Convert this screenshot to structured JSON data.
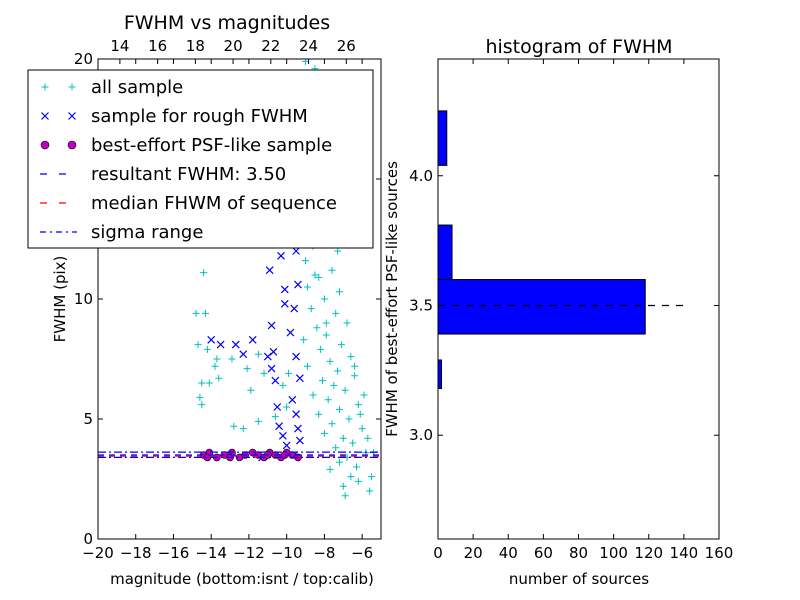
{
  "chart_data": [
    {
      "type": "scatter",
      "title": "FWHM vs magnitudes",
      "xlabel": "magnitude (bottom:isnt / top:calib)",
      "ylabel": "FWHM (pix)",
      "xlim": [
        -20,
        -5
      ],
      "ylim": [
        0,
        20
      ],
      "x_ticks": [
        -20,
        -18,
        -16,
        -14,
        -12,
        -10,
        -8,
        -6
      ],
      "x_tick_labels": [
        "−20",
        "−18",
        "−16",
        "−14",
        "−12",
        "−10",
        "−8",
        "−6"
      ],
      "y_ticks": [
        0,
        5,
        10,
        15,
        20
      ],
      "y_tick_labels": [
        "0",
        "5",
        "10",
        "15",
        "20"
      ],
      "top_axis": {
        "ticks_at_bottom_mag": [
          -18.84,
          -16.84,
          -14.84,
          -12.84,
          -10.84,
          -8.84,
          -6.84,
          -4.84
        ],
        "tick_labels": [
          "14",
          "16",
          "18",
          "20",
          "22",
          "24",
          "26"
        ]
      },
      "grid": false,
      "legend_placement": "upper-left",
      "legend": [
        {
          "label": "all sample",
          "marker": "+",
          "color": "#00bfbf"
        },
        {
          "label": "sample for rough FWHM",
          "marker": "x",
          "color": "#0000ff"
        },
        {
          "label": "best-effort PSF-like sample",
          "marker": "o",
          "color": "#bf00bf"
        },
        {
          "label": "resultant FWHM: 3.50",
          "marker": "--",
          "color": "#0000ff"
        },
        {
          "label": "median FHWM of sequence",
          "marker": "--",
          "color": "#ff0000"
        },
        {
          "label": "sigma range",
          "marker": "-.",
          "color": "#0000ff"
        }
      ],
      "hlines": [
        {
          "y": 3.5,
          "style": "dashed",
          "color": "#0000ff"
        },
        {
          "y": 3.45,
          "style": "dashed",
          "color": "#ff0000"
        },
        {
          "y": 3.62,
          "style": "dashdot",
          "color": "#0000ff"
        },
        {
          "y": 3.4,
          "style": "dashdot",
          "color": "#0000ff"
        }
      ],
      "series": [
        {
          "name": "all sample",
          "marker": "+",
          "color": "#00bfbf",
          "points": [
            [
              -14.4,
              11.1
            ],
            [
              -14.8,
              9.4
            ],
            [
              -14.3,
              9.4
            ],
            [
              -14.7,
              8.1
            ],
            [
              -14.2,
              7.9
            ],
            [
              -13.7,
              7.5
            ],
            [
              -13.8,
              7.2
            ],
            [
              -14.5,
              6.5
            ],
            [
              -14.1,
              6.5
            ],
            [
              -14.6,
              5.9
            ],
            [
              -14.5,
              5.6
            ],
            [
              -13.6,
              6.7
            ],
            [
              -12.9,
              7.5
            ],
            [
              -12.1,
              7.1
            ],
            [
              -11.5,
              7.7
            ],
            [
              -11.2,
              6.9
            ],
            [
              -10.6,
              5.1
            ],
            [
              -10.2,
              6.4
            ],
            [
              -10.0,
              5.5
            ],
            [
              -9.9,
              6.9
            ],
            [
              -11.5,
              4.9
            ],
            [
              -11.9,
              6.2
            ],
            [
              -12.3,
              4.6
            ],
            [
              -12.8,
              4.7
            ],
            [
              -11.5,
              18.1
            ],
            [
              -9.0,
              19.9
            ],
            [
              -8.5,
              19.6
            ],
            [
              -7.5,
              19.4
            ],
            [
              -6.5,
              19.0
            ],
            [
              -8.0,
              17.5
            ],
            [
              -8.5,
              16.5
            ],
            [
              -9.0,
              15.5
            ],
            [
              -7.5,
              15.2
            ],
            [
              -7.0,
              14.6
            ],
            [
              -8.8,
              14.0
            ],
            [
              -8.2,
              13.4
            ],
            [
              -9.2,
              13.0
            ],
            [
              -7.8,
              12.6
            ],
            [
              -8.6,
              12.2
            ],
            [
              -9.0,
              11.6
            ],
            [
              -7.6,
              11.2
            ],
            [
              -8.3,
              10.9
            ],
            [
              -8.9,
              10.5
            ],
            [
              -7.2,
              10.3
            ],
            [
              -8.0,
              10.0
            ],
            [
              -8.7,
              9.6
            ],
            [
              -7.4,
              9.4
            ],
            [
              -6.8,
              9.0
            ],
            [
              -8.4,
              8.8
            ],
            [
              -7.9,
              8.5
            ],
            [
              -9.1,
              8.3
            ],
            [
              -7.1,
              8.1
            ],
            [
              -8.2,
              7.9
            ],
            [
              -6.6,
              7.6
            ],
            [
              -7.7,
              7.4
            ],
            [
              -8.9,
              7.2
            ],
            [
              -7.3,
              7.0
            ],
            [
              -6.4,
              6.8
            ],
            [
              -8.1,
              6.6
            ],
            [
              -7.5,
              6.4
            ],
            [
              -6.9,
              6.2
            ],
            [
              -8.6,
              6.0
            ],
            [
              -7.8,
              5.8
            ],
            [
              -6.2,
              5.6
            ],
            [
              -7.2,
              5.4
            ],
            [
              -8.3,
              5.2
            ],
            [
              -6.7,
              5.0
            ],
            [
              -7.6,
              4.8
            ],
            [
              -6.0,
              4.6
            ],
            [
              -8.0,
              4.4
            ],
            [
              -7.0,
              4.2
            ],
            [
              -6.5,
              4.0
            ],
            [
              -7.4,
              3.8
            ],
            [
              -5.8,
              3.6
            ],
            [
              -6.8,
              3.4
            ],
            [
              -7.2,
              3.2
            ],
            [
              -6.3,
              3.0
            ],
            [
              -7.7,
              2.9
            ],
            [
              -6.6,
              2.6
            ],
            [
              -7.0,
              2.2
            ],
            [
              -5.6,
              2.0
            ],
            [
              -6.9,
              1.8
            ],
            [
              -6.2,
              2.4
            ],
            [
              -5.5,
              2.6
            ],
            [
              -5.7,
              4.2
            ],
            [
              -5.4,
              3.6
            ],
            [
              -6.1,
              5.2
            ],
            [
              -5.9,
              6.0
            ],
            [
              -6.4,
              7.2
            ],
            [
              -7.9,
              9.0
            ],
            [
              -8.5,
              11.0
            ],
            [
              -7.3,
              12.0
            ],
            [
              -8.1,
              14.2
            ]
          ]
        },
        {
          "name": "sample for rough FWHM",
          "marker": "x",
          "color": "#0000ff",
          "points": [
            [
              -14.0,
              8.3
            ],
            [
              -13.5,
              8.1
            ],
            [
              -12.7,
              8.1
            ],
            [
              -12.3,
              7.7
            ],
            [
              -11.8,
              8.3
            ],
            [
              -11.0,
              7.6
            ],
            [
              -10.8,
              7.1
            ],
            [
              -10.5,
              5.5
            ],
            [
              -10.4,
              4.7
            ],
            [
              -10.8,
              8.9
            ],
            [
              -10.9,
              11.2
            ],
            [
              -11.0,
              12.8
            ],
            [
              -10.6,
              14.1
            ],
            [
              -10.2,
              15.6
            ],
            [
              -10.0,
              16.2
            ],
            [
              -9.8,
              14.9
            ],
            [
              -9.6,
              13.5
            ],
            [
              -9.5,
              12.0
            ],
            [
              -9.4,
              10.6
            ],
            [
              -9.6,
              9.6
            ],
            [
              -9.8,
              8.6
            ],
            [
              -9.5,
              7.6
            ],
            [
              -9.3,
              6.7
            ],
            [
              -9.7,
              5.8
            ],
            [
              -9.5,
              5.2
            ],
            [
              -9.4,
              4.6
            ],
            [
              -9.3,
              4.1
            ],
            [
              -10.1,
              9.8
            ],
            [
              -10.3,
              11.8
            ],
            [
              -9.9,
              12.6
            ],
            [
              -10.4,
              13.4
            ],
            [
              -10.1,
              10.4
            ],
            [
              -10.6,
              6.6
            ],
            [
              -10.2,
              4.3
            ],
            [
              -10.0,
              3.9
            ],
            [
              -9.6,
              3.5
            ],
            [
              -11.3,
              3.4
            ],
            [
              -10.7,
              7.8
            ]
          ]
        },
        {
          "name": "best-effort PSF-like sample",
          "marker": "o",
          "color": "#bf00bf",
          "points": [
            [
              -14.4,
              3.5
            ],
            [
              -14.1,
              3.6
            ],
            [
              -13.7,
              3.4
            ],
            [
              -13.3,
              3.5
            ],
            [
              -12.9,
              3.6
            ],
            [
              -12.5,
              3.4
            ],
            [
              -12.2,
              3.5
            ],
            [
              -11.8,
              3.6
            ],
            [
              -11.5,
              3.5
            ],
            [
              -11.2,
              3.4
            ],
            [
              -10.9,
              3.6
            ],
            [
              -10.6,
              3.5
            ],
            [
              -10.3,
              3.4
            ],
            [
              -10.0,
              3.6
            ],
            [
              -9.7,
              3.5
            ],
            [
              -9.4,
              3.4
            ],
            [
              -14.2,
              3.4
            ],
            [
              -13.0,
              3.4
            ],
            [
              -11.0,
              3.5
            ],
            [
              -10.1,
              3.5
            ]
          ]
        }
      ]
    },
    {
      "type": "bar",
      "orientation": "horizontal",
      "title": "histogram of FWHM",
      "xlabel": "number of sources",
      "ylabel": "FWHM of best-effort PSF-like sources",
      "xlim": [
        0,
        160
      ],
      "ylim": [
        2.6,
        4.45
      ],
      "x_ticks": [
        0,
        20,
        40,
        60,
        80,
        100,
        120,
        140,
        160
      ],
      "x_tick_labels": [
        "0",
        "20",
        "40",
        "60",
        "80",
        "100",
        "120",
        "140",
        "160"
      ],
      "y_ticks": [
        3.0,
        3.5,
        4.0
      ],
      "y_tick_labels": [
        "3.0",
        "3.5",
        "4.0"
      ],
      "grid": false,
      "bar_color": "#0000ff",
      "bins": [
        {
          "from": 3.18,
          "to": 3.29,
          "count": 2
        },
        {
          "from": 3.29,
          "to": 3.39,
          "count": 0
        },
        {
          "from": 3.39,
          "to": 3.6,
          "count": 118
        },
        {
          "from": 3.6,
          "to": 3.81,
          "count": 8
        },
        {
          "from": 3.81,
          "to": 4.04,
          "count": 0
        },
        {
          "from": 4.04,
          "to": 4.25,
          "count": 5
        }
      ],
      "hline": {
        "y": 3.5,
        "style": "dashed",
        "color": "#000000"
      }
    }
  ]
}
